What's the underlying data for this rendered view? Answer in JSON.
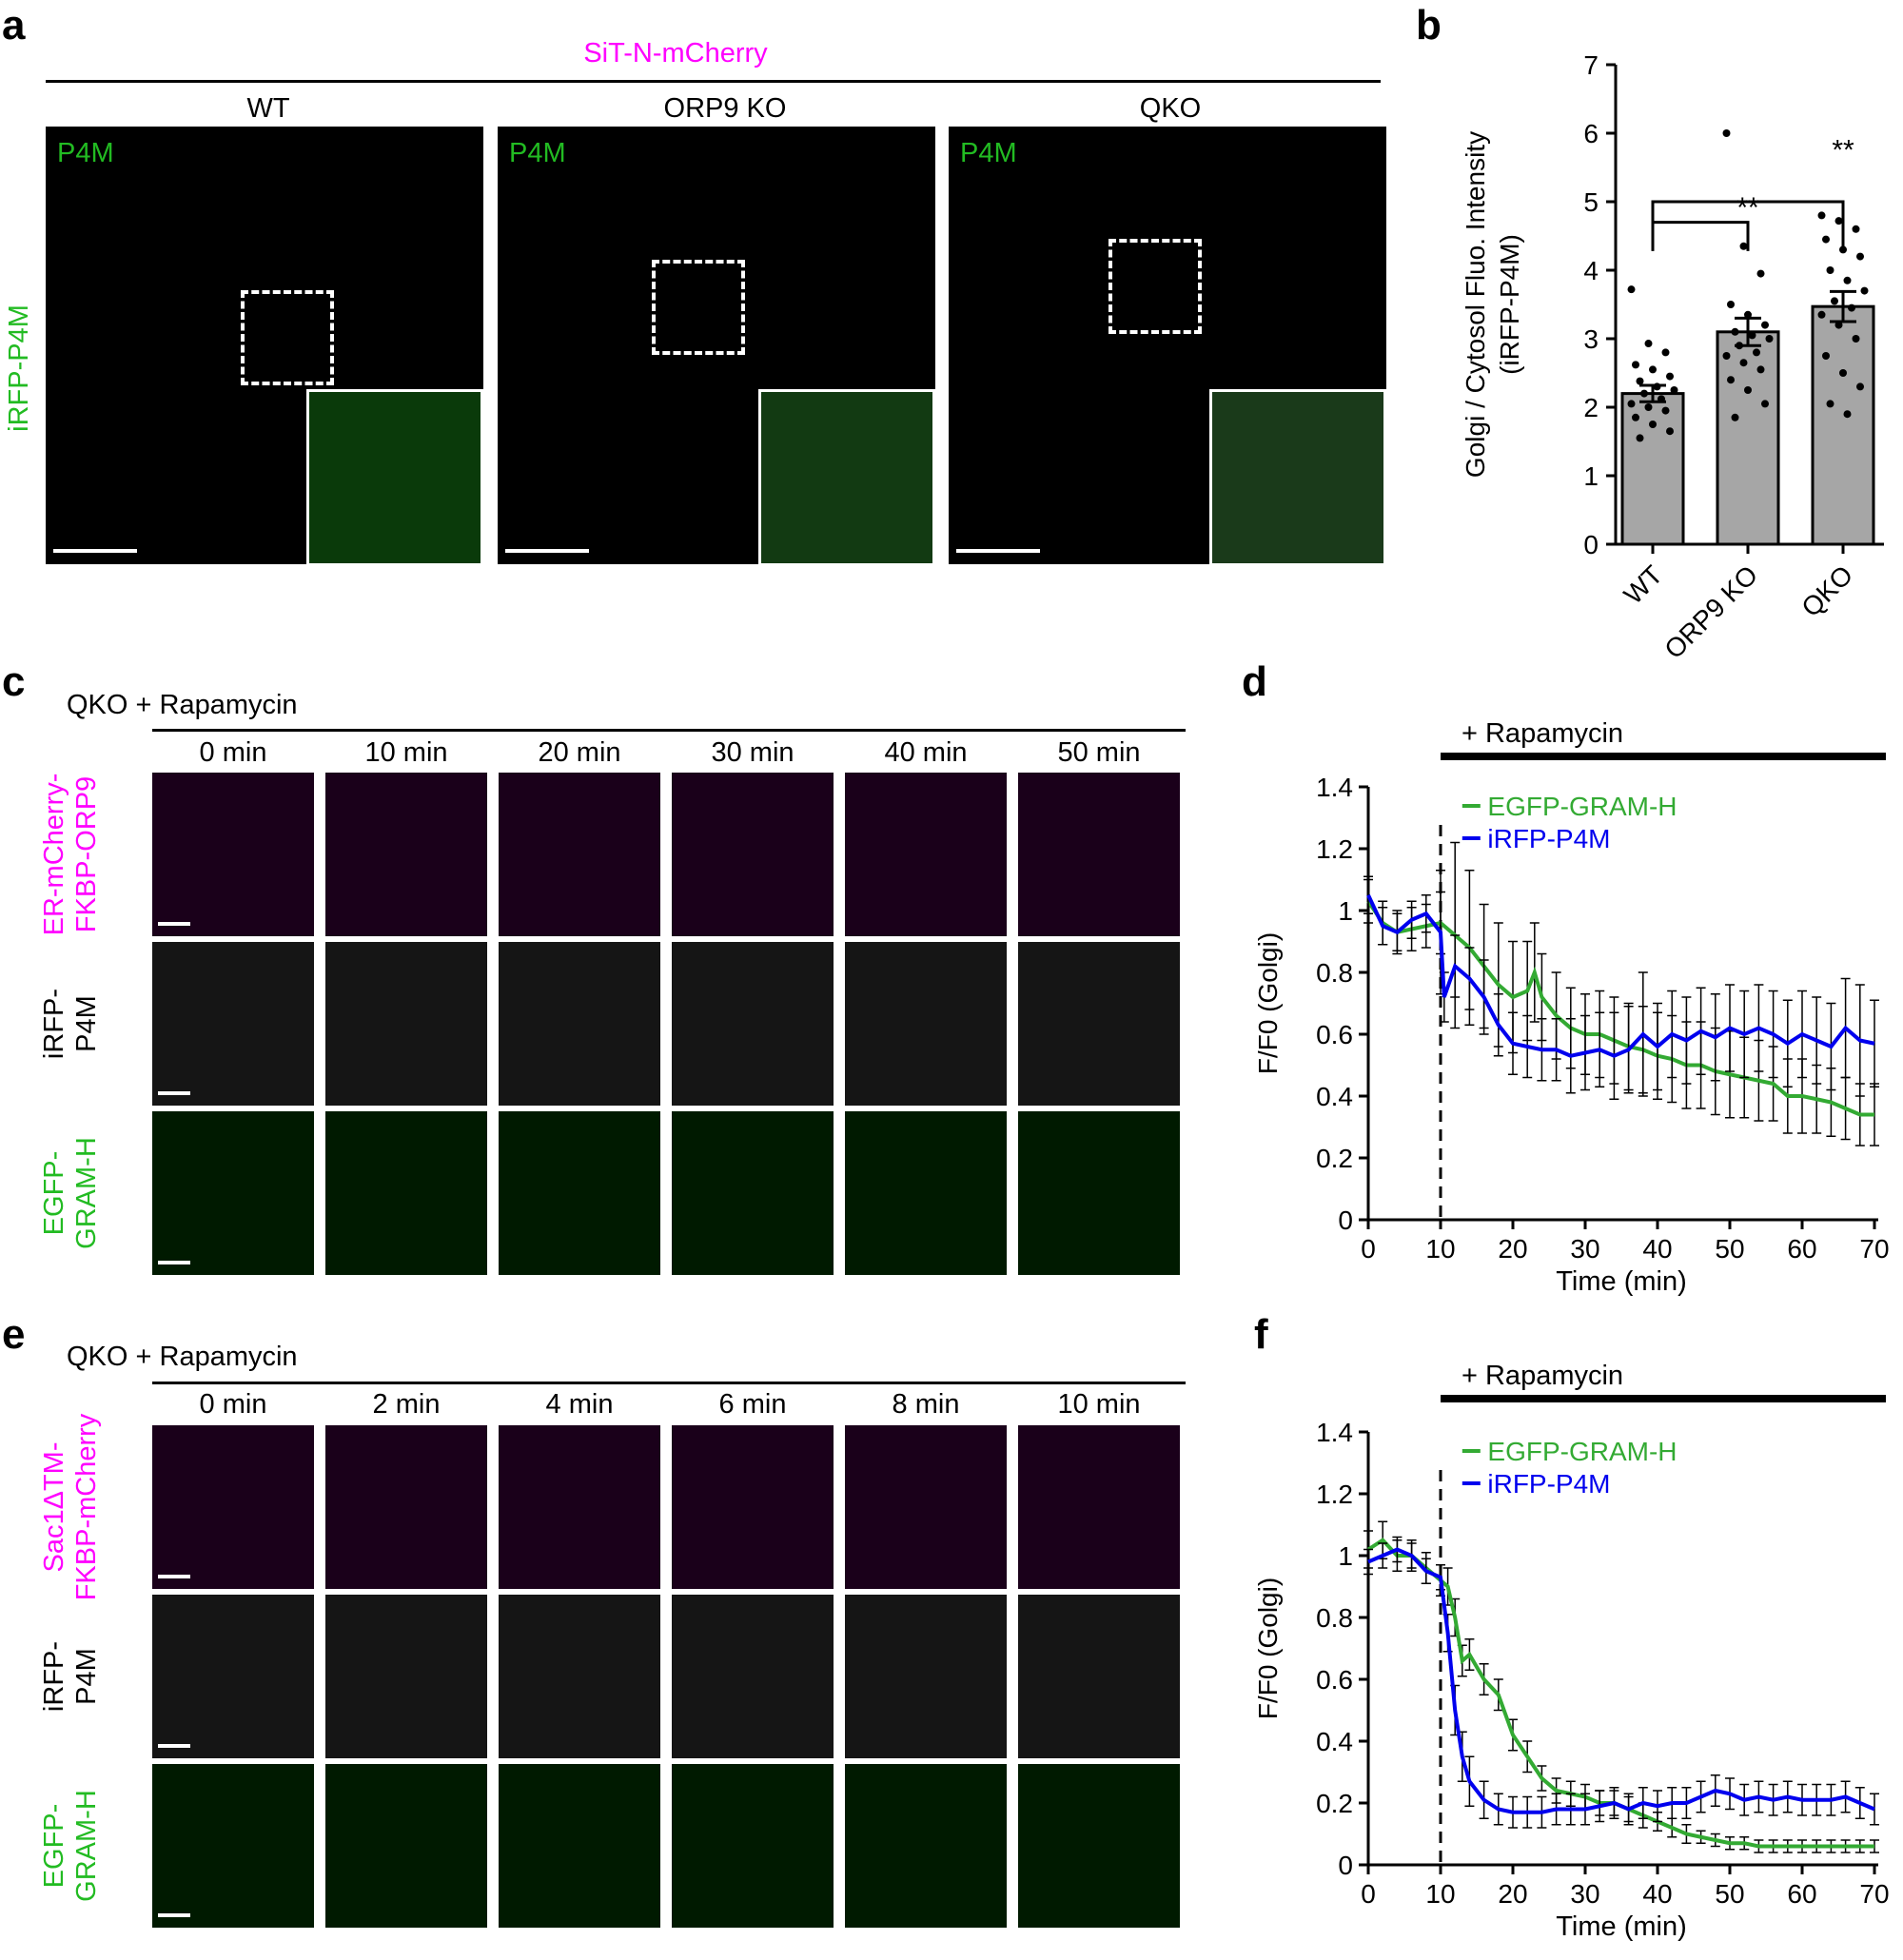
{
  "panels": {
    "a": {
      "letter": "a",
      "header": "SiT-N-mCherry",
      "row_label": "iRFP-P4M",
      "columns": [
        "WT",
        "ORP9 KO",
        "QKO"
      ],
      "channel_tag": "P4M"
    },
    "b": {
      "letter": "b"
    },
    "c": {
      "letter": "c",
      "condition": "QKO + Rapamycin",
      "times": [
        "0 min",
        "10 min",
        "20 min",
        "30 min",
        "40 min",
        "50 min"
      ],
      "rows": [
        {
          "label1": "ER-mCherry-",
          "label2": "FKBP-ORP9"
        },
        {
          "label1": "iRFP-",
          "label2": "P4M"
        },
        {
          "label1": "EGFP-",
          "label2": "GRAM-H"
        }
      ]
    },
    "d": {
      "letter": "d",
      "treatment": "+ Rapamycin"
    },
    "e": {
      "letter": "e",
      "condition": "QKO + Rapamycin",
      "times": [
        "0 min",
        "2 min",
        "4 min",
        "6 min",
        "8 min",
        "10 min"
      ],
      "rows": [
        {
          "label1": "Sac1ΔTM-",
          "label2": "FKBP-mCherry"
        },
        {
          "label1": "iRFP-",
          "label2": "P4M"
        },
        {
          "label1": "EGFP-",
          "label2": "GRAM-H"
        }
      ]
    },
    "f": {
      "letter": "f",
      "treatment": "+ Rapamycin"
    }
  },
  "colors": {
    "magenta": "#ff00ff",
    "green": "#00cc00",
    "bar_gray": "#a6a6a6",
    "line_green": "#33aa33",
    "line_blue": "#0000ee"
  },
  "chart_data": [
    {
      "id": "b",
      "type": "bar",
      "categories": [
        "WT",
        "ORP9 KO",
        "QKO"
      ],
      "values": [
        2.2,
        3.1,
        3.47
      ],
      "sem": [
        0.12,
        0.2,
        0.22
      ],
      "ylabel_lines": [
        "Golgi / Cytosol Fluo. Intensity",
        "(iRFP-P4M)"
      ],
      "ylim": [
        0,
        7
      ],
      "yticks": [
        0,
        1,
        2,
        3,
        4,
        5,
        6,
        7
      ],
      "significance": [
        {
          "from": "WT",
          "to": "ORP9 KO",
          "label": "**"
        },
        {
          "from": "WT",
          "to": "QKO",
          "label": "**"
        }
      ],
      "points": [
        [
          3.72,
          2.93,
          2.8,
          2.62,
          2.55,
          2.45,
          2.38,
          2.3,
          2.25,
          2.2,
          2.12,
          2.05,
          2.0,
          1.95,
          1.85,
          1.75,
          1.65,
          1.55
        ],
        [
          6.0,
          4.35,
          3.95,
          3.5,
          3.35,
          3.2,
          3.1,
          3.05,
          3.0,
          2.9,
          2.8,
          2.75,
          2.65,
          2.55,
          2.4,
          2.25,
          2.05,
          1.85
        ],
        [
          4.8,
          4.72,
          4.6,
          4.45,
          4.3,
          4.2,
          4.0,
          3.85,
          3.7,
          3.55,
          3.45,
          3.35,
          3.2,
          3.0,
          2.75,
          2.5,
          2.3,
          2.05,
          1.9
        ]
      ]
    },
    {
      "id": "d",
      "type": "line",
      "xlabel": "Time (min)",
      "ylabel": "F/F0 (Golgi)",
      "xlim": [
        0,
        70
      ],
      "ylim": [
        0,
        1.4
      ],
      "xticks": [
        0,
        10,
        20,
        30,
        40,
        50,
        60,
        70
      ],
      "yticks": [
        0,
        0.2,
        0.4,
        0.6,
        0.8,
        1,
        1.2,
        1.4
      ],
      "vline_x": 10,
      "series": [
        {
          "name": "EGFP-GRAM-H",
          "x": [
            0,
            2,
            4,
            6,
            8,
            10,
            12,
            14,
            16,
            18,
            20,
            22,
            23,
            24,
            26,
            28,
            30,
            32,
            34,
            36,
            38,
            40,
            42,
            44,
            46,
            48,
            50,
            52,
            54,
            56,
            58,
            60,
            62,
            64,
            66,
            68,
            70
          ],
          "y": [
            1.03,
            0.96,
            0.93,
            0.94,
            0.95,
            0.96,
            0.92,
            0.88,
            0.82,
            0.76,
            0.72,
            0.74,
            0.8,
            0.72,
            0.66,
            0.62,
            0.6,
            0.6,
            0.58,
            0.56,
            0.55,
            0.53,
            0.52,
            0.5,
            0.5,
            0.48,
            0.47,
            0.46,
            0.45,
            0.44,
            0.4,
            0.4,
            0.39,
            0.38,
            0.36,
            0.34,
            0.34
          ],
          "err": [
            0.07,
            0.07,
            0.07,
            0.07,
            0.07,
            0.1,
            0.3,
            0.25,
            0.2,
            0.2,
            0.18,
            0.16,
            0.16,
            0.14,
            0.14,
            0.13,
            0.13,
            0.14,
            0.14,
            0.14,
            0.14,
            0.14,
            0.14,
            0.14,
            0.14,
            0.14,
            0.14,
            0.13,
            0.13,
            0.12,
            0.12,
            0.12,
            0.11,
            0.11,
            0.1,
            0.1,
            0.1
          ]
        },
        {
          "name": "iRFP-P4M",
          "x": [
            0,
            2,
            4,
            6,
            8,
            10,
            10.5,
            12,
            14,
            16,
            18,
            20,
            22,
            24,
            26,
            28,
            30,
            32,
            34,
            36,
            38,
            40,
            42,
            44,
            46,
            48,
            50,
            52,
            54,
            56,
            58,
            60,
            62,
            64,
            66,
            68,
            70
          ],
          "y": [
            1.05,
            0.95,
            0.93,
            0.97,
            0.99,
            0.93,
            0.72,
            0.82,
            0.78,
            0.72,
            0.63,
            0.57,
            0.56,
            0.55,
            0.55,
            0.53,
            0.54,
            0.55,
            0.53,
            0.55,
            0.6,
            0.56,
            0.6,
            0.58,
            0.61,
            0.59,
            0.62,
            0.6,
            0.62,
            0.6,
            0.57,
            0.6,
            0.58,
            0.56,
            0.62,
            0.58,
            0.57
          ],
          "err": [
            0.06,
            0.06,
            0.06,
            0.06,
            0.06,
            0.2,
            0.08,
            0.1,
            0.1,
            0.12,
            0.1,
            0.1,
            0.1,
            0.1,
            0.1,
            0.12,
            0.12,
            0.12,
            0.14,
            0.14,
            0.2,
            0.14,
            0.14,
            0.14,
            0.14,
            0.14,
            0.14,
            0.14,
            0.14,
            0.14,
            0.14,
            0.14,
            0.14,
            0.14,
            0.16,
            0.18,
            0.14
          ]
        }
      ]
    },
    {
      "id": "f",
      "type": "line",
      "xlabel": "Time (min)",
      "ylabel": "F/F0 (Golgi)",
      "xlim": [
        0,
        70
      ],
      "ylim": [
        0,
        1.4
      ],
      "xticks": [
        0,
        10,
        20,
        30,
        40,
        50,
        60,
        70
      ],
      "yticks": [
        0,
        0.2,
        0.4,
        0.6,
        0.8,
        1,
        1.2,
        1.4
      ],
      "vline_x": 10,
      "series": [
        {
          "name": "EGFP-GRAM-H",
          "x": [
            0,
            2,
            4,
            6,
            8,
            10,
            11,
            12,
            13,
            14,
            16,
            18,
            20,
            22,
            24,
            26,
            28,
            30,
            32,
            34,
            36,
            38,
            40,
            42,
            44,
            46,
            48,
            50,
            52,
            54,
            56,
            58,
            60,
            62,
            64,
            66,
            68,
            70
          ],
          "y": [
            1.02,
            1.05,
            1.0,
            1.0,
            0.96,
            0.92,
            0.9,
            0.8,
            0.66,
            0.68,
            0.6,
            0.55,
            0.42,
            0.35,
            0.28,
            0.24,
            0.23,
            0.22,
            0.2,
            0.2,
            0.18,
            0.16,
            0.14,
            0.12,
            0.1,
            0.09,
            0.08,
            0.07,
            0.07,
            0.06,
            0.06,
            0.06,
            0.06,
            0.06,
            0.06,
            0.06,
            0.06,
            0.06
          ],
          "err": [
            0.06,
            0.06,
            0.05,
            0.05,
            0.05,
            0.05,
            0.06,
            0.06,
            0.05,
            0.05,
            0.05,
            0.05,
            0.05,
            0.05,
            0.04,
            0.04,
            0.04,
            0.04,
            0.04,
            0.04,
            0.04,
            0.04,
            0.03,
            0.03,
            0.03,
            0.02,
            0.02,
            0.02,
            0.02,
            0.02,
            0.02,
            0.02,
            0.02,
            0.02,
            0.02,
            0.02,
            0.02,
            0.02
          ]
        },
        {
          "name": "iRFP-P4M",
          "x": [
            0,
            2,
            4,
            6,
            8,
            10,
            11,
            12,
            13,
            14,
            16,
            18,
            20,
            22,
            24,
            26,
            28,
            30,
            32,
            34,
            36,
            38,
            40,
            42,
            44,
            46,
            48,
            50,
            52,
            54,
            56,
            58,
            60,
            62,
            64,
            66,
            68,
            70
          ],
          "y": [
            0.98,
            1.0,
            1.02,
            1.0,
            0.95,
            0.93,
            0.75,
            0.5,
            0.35,
            0.27,
            0.21,
            0.18,
            0.17,
            0.17,
            0.17,
            0.18,
            0.18,
            0.18,
            0.19,
            0.2,
            0.18,
            0.2,
            0.19,
            0.2,
            0.2,
            0.22,
            0.24,
            0.23,
            0.21,
            0.22,
            0.21,
            0.22,
            0.21,
            0.21,
            0.21,
            0.22,
            0.2,
            0.18
          ],
          "err": [
            0.04,
            0.04,
            0.04,
            0.04,
            0.04,
            0.04,
            0.06,
            0.08,
            0.08,
            0.08,
            0.06,
            0.05,
            0.05,
            0.05,
            0.05,
            0.05,
            0.05,
            0.05,
            0.05,
            0.05,
            0.05,
            0.05,
            0.05,
            0.05,
            0.05,
            0.05,
            0.05,
            0.05,
            0.05,
            0.05,
            0.05,
            0.05,
            0.05,
            0.05,
            0.05,
            0.05,
            0.05,
            0.05
          ]
        }
      ]
    }
  ]
}
